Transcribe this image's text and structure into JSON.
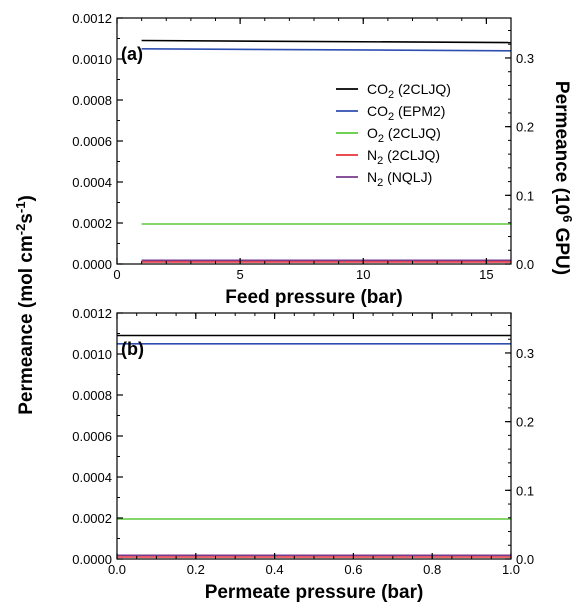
{
  "chart_data": [
    {
      "type": "line",
      "panel_label": "(a)",
      "xlabel": "Feed pressure (bar)",
      "ylabel": "Permeance (mol cm -2s-1)",
      "y2label": "Permeance (10^6 GPU)",
      "xlim": [
        0,
        16
      ],
      "ylim": [
        0,
        0.0012
      ],
      "y2lim": [
        0,
        0.3582
      ],
      "xticks": [
        "0",
        "5",
        "10",
        "15"
      ],
      "xtick_values": [
        0,
        5,
        10,
        15
      ],
      "yticks": [
        "0.0000",
        "0.0002",
        "0.0004",
        "0.0006",
        "0.0008",
        "0.0010",
        "0.0012"
      ],
      "ytick_values": [
        0,
        0.0002,
        0.0004,
        0.0006,
        0.0008,
        0.001,
        0.0012
      ],
      "y2ticks": [
        "0.0",
        "0.1",
        "0.2",
        "0.3"
      ],
      "y2tick_values": [
        0,
        0.1,
        0.2,
        0.3
      ],
      "legend_position": "top-right",
      "series": [
        {
          "name": "CO2 (2CLJQ)",
          "color": "#000000",
          "x": [
            1,
            16
          ],
          "y": [
            0.00109,
            0.00108
          ]
        },
        {
          "name": "CO2 (EPM2)",
          "color": "#2f4fb0",
          "x": [
            1,
            16
          ],
          "y": [
            0.00105,
            0.00104
          ]
        },
        {
          "name": "O2 (2CLJQ)",
          "color": "#5cc93a",
          "x": [
            1,
            16
          ],
          "y": [
            0.000195,
            0.000195
          ]
        },
        {
          "name": "N2 (2CLJQ)",
          "color": "#e8333a",
          "x": [
            1,
            16
          ],
          "y": [
            1e-05,
            1e-05
          ]
        },
        {
          "name": "N2 (NQLJ)",
          "color": "#7a3a8c",
          "x": [
            1,
            16
          ],
          "y": [
            1.8e-05,
            1.8e-05
          ]
        }
      ]
    },
    {
      "type": "line",
      "panel_label": "(b)",
      "xlabel": "Permeate pressure (bar)",
      "xlim": [
        0,
        1
      ],
      "ylim": [
        0,
        0.0012
      ],
      "y2lim": [
        0,
        0.3582
      ],
      "xticks": [
        "0.0",
        "0.2",
        "0.4",
        "0.6",
        "0.8",
        "1.0"
      ],
      "xtick_values": [
        0,
        0.2,
        0.4,
        0.6,
        0.8,
        1.0
      ],
      "yticks": [
        "0.0000",
        "0.0002",
        "0.0004",
        "0.0006",
        "0.0008",
        "0.0010",
        "0.0012"
      ],
      "ytick_values": [
        0,
        0.0002,
        0.0004,
        0.0006,
        0.0008,
        0.001,
        0.0012
      ],
      "y2ticks": [
        "0.0",
        "0.1",
        "0.2",
        "0.3"
      ],
      "y2tick_values": [
        0,
        0.1,
        0.2,
        0.3
      ],
      "series": [
        {
          "name": "CO2 (2CLJQ)",
          "color": "#000000",
          "x": [
            0,
            1
          ],
          "y": [
            0.00109,
            0.00109
          ]
        },
        {
          "name": "CO2 (EPM2)",
          "color": "#2f4fb0",
          "x": [
            0,
            1
          ],
          "y": [
            0.00105,
            0.00105
          ]
        },
        {
          "name": "O2 (2CLJQ)",
          "color": "#5cc93a",
          "x": [
            0,
            1
          ],
          "y": [
            0.000195,
            0.000195
          ]
        },
        {
          "name": "N2 (2CLJQ)",
          "color": "#e8333a",
          "x": [
            0,
            1
          ],
          "y": [
            1e-05,
            1e-05
          ]
        },
        {
          "name": "N2 (NQLJ)",
          "color": "#7a3a8c",
          "x": [
            0,
            1
          ],
          "y": [
            1.8e-05,
            1.8e-05
          ]
        }
      ]
    }
  ],
  "legend": {
    "items": [
      {
        "base": "CO",
        "sub": "2",
        "tail": " (2CLJQ)",
        "color": "#000000"
      },
      {
        "base": "CO",
        "sub": "2",
        "tail": " (EPM2)",
        "color": "#2f4fb0"
      },
      {
        "base": "O",
        "sub": "2",
        "tail": " (2CLJQ)",
        "color": "#5cc93a"
      },
      {
        "base": "N",
        "sub": "2",
        "tail": " (2CLJQ)",
        "color": "#e8333a"
      },
      {
        "base": "N",
        "sub": "2",
        "tail": " (NQLJ)",
        "color": "#7a3a8c"
      }
    ]
  },
  "ylabel_parts": {
    "pre": "Permeance (mol cm",
    "sup1": "-2",
    "mid": "s",
    "sup2": "-1",
    "post": ")"
  },
  "y2label_parts": {
    "pre": "Permeance (10",
    "sup": "6",
    "post": " GPU)"
  }
}
